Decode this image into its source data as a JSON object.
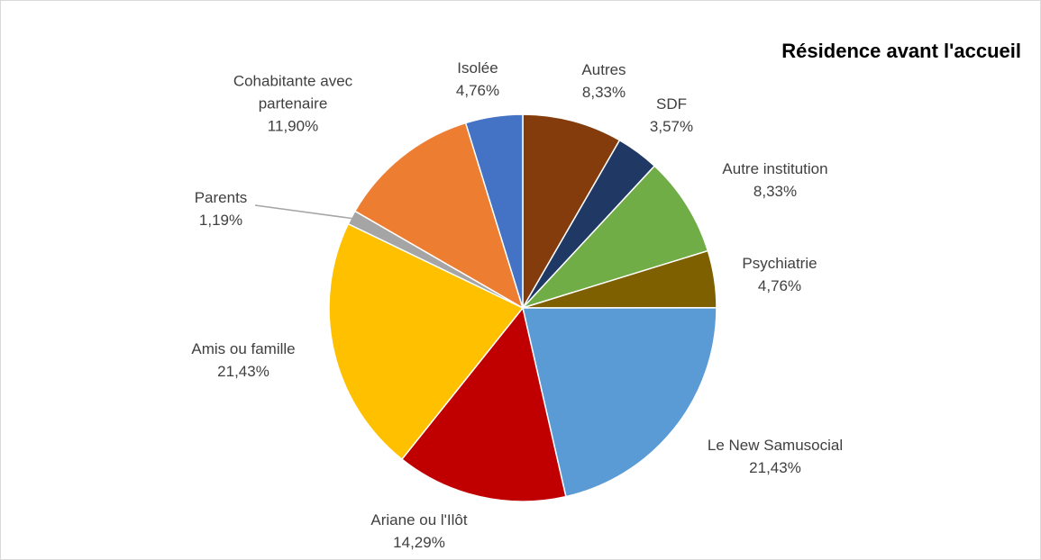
{
  "chart_data": {
    "type": "pie",
    "title": "Résidence avant l'accueil",
    "categories": [
      "Autres",
      "SDF",
      "Autre institution",
      "Psychiatrie",
      "Le New Samusocial",
      "Ariane ou l'Ilôt",
      "Amis ou famille",
      "Parents",
      "Cohabitante avec partenaire",
      "Isolée"
    ],
    "values": [
      8.33,
      3.57,
      8.33,
      4.76,
      21.43,
      14.29,
      21.43,
      1.19,
      11.9,
      4.76
    ],
    "value_labels": [
      "8,33%",
      "3,57%",
      "8,33%",
      "4,76%",
      "21,43%",
      "14,29%",
      "21,43%",
      "1,19%",
      "11,90%",
      "4,76%"
    ],
    "colors": [
      "#843c0c",
      "#203864",
      "#70ad47",
      "#7f6000",
      "#5b9bd5",
      "#c00000",
      "#ffc000",
      "#a5a5a5",
      "#ed7d31",
      "#4472c4"
    ]
  }
}
